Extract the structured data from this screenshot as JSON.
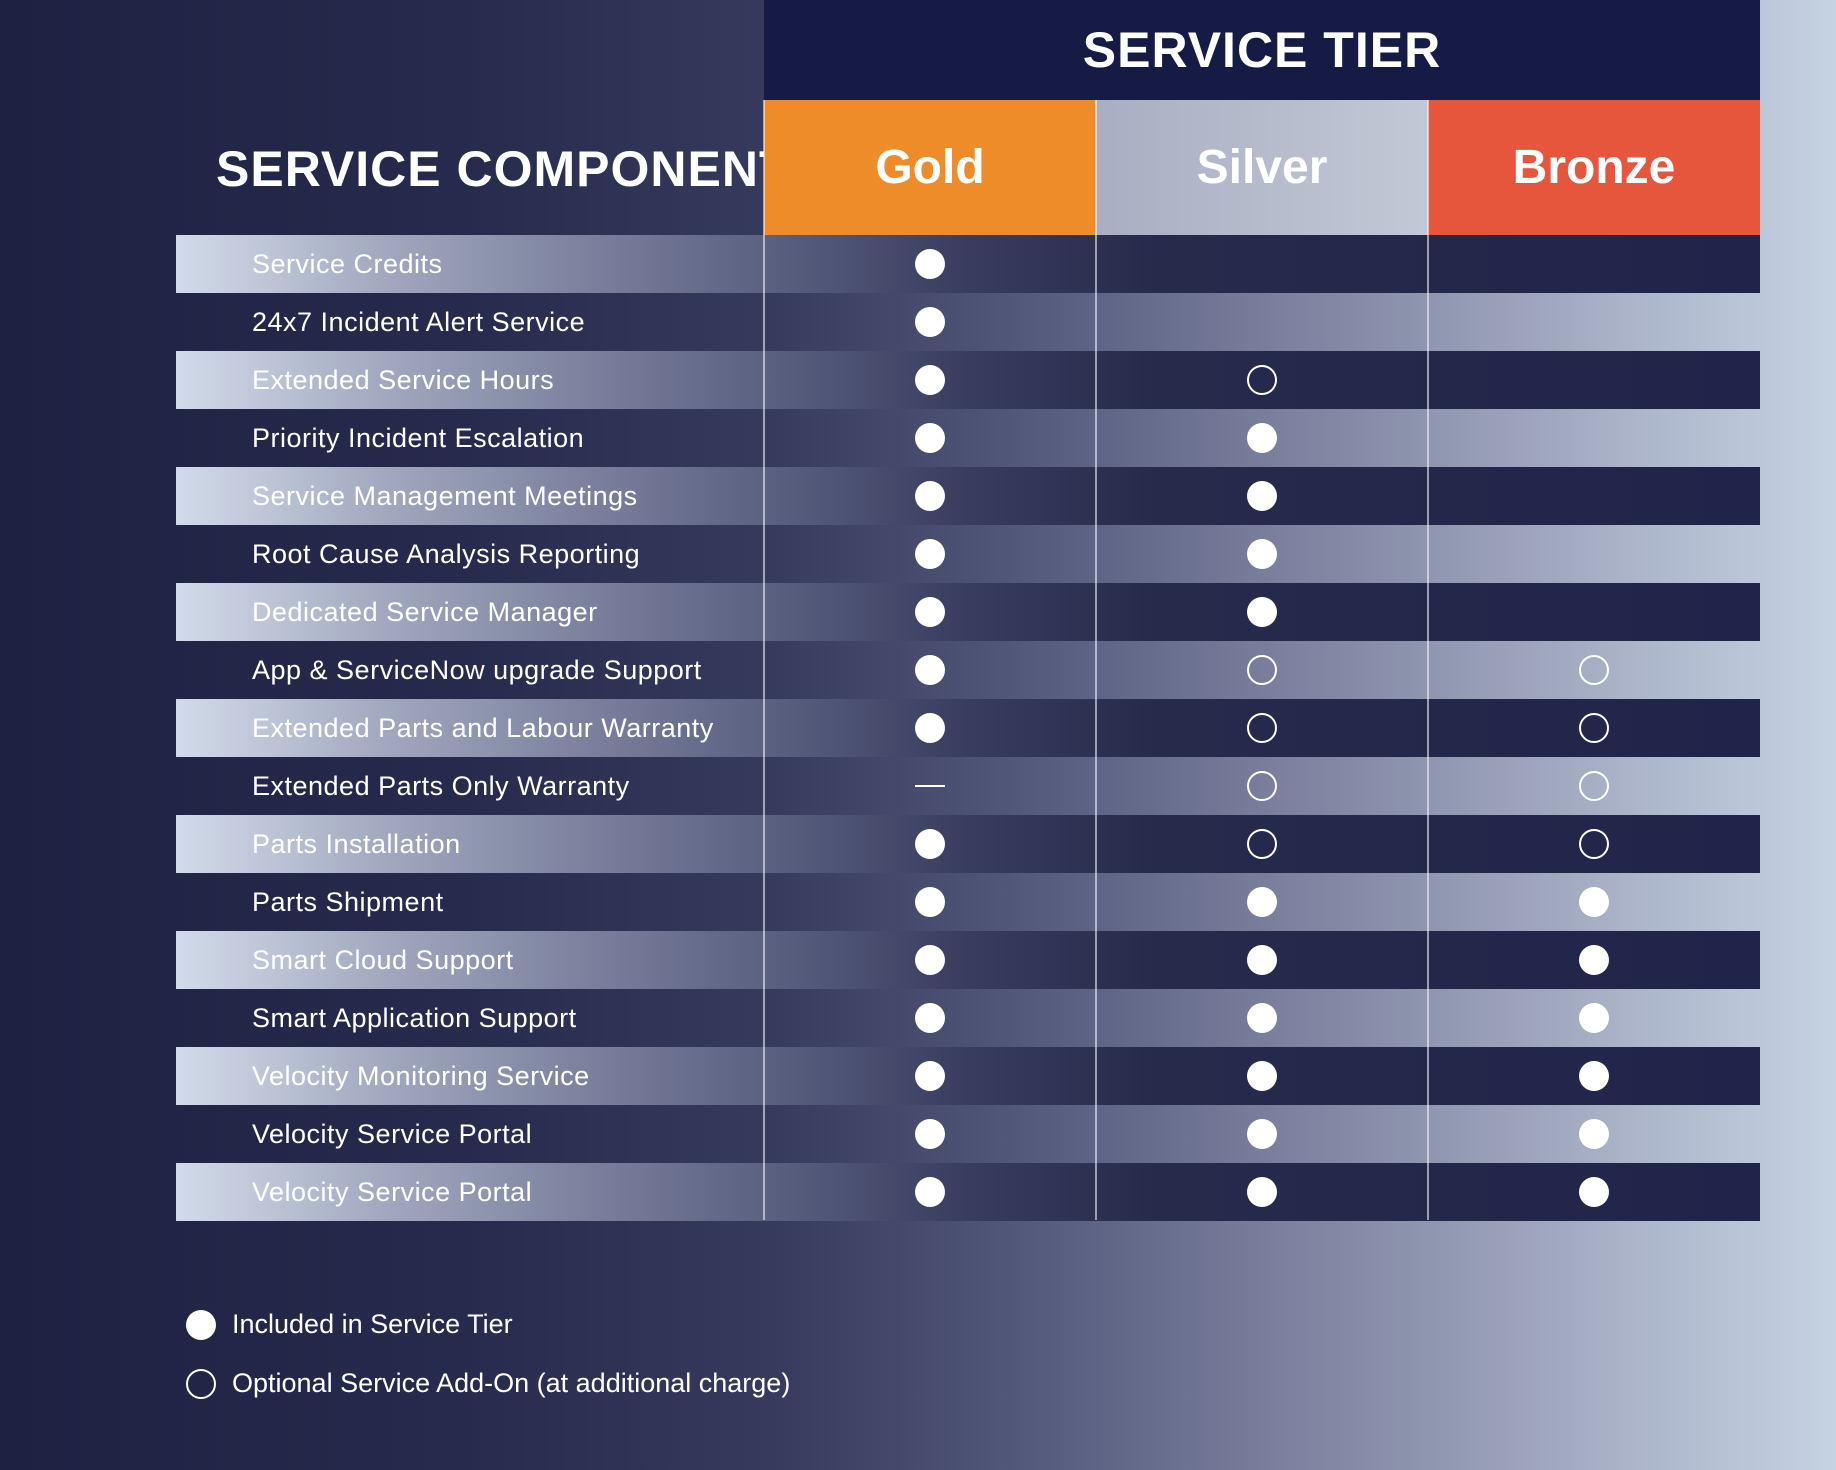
{
  "header": {
    "tier_title": "SERVICE TIER",
    "component_title": "SERVICE COMPONENT",
    "tiers": [
      "Gold",
      "Silver",
      "Bronze"
    ]
  },
  "colors": {
    "gold": "#ef8c2a",
    "silver": "#b8bdcc",
    "bronze": "#e5563c",
    "header_bg": "#161b45"
  },
  "rows": [
    {
      "label": "Service Credits",
      "shaded": true,
      "values": [
        "included",
        "none",
        "none"
      ]
    },
    {
      "label": "24x7 Incident Alert Service",
      "shaded": false,
      "values": [
        "included",
        "none",
        "none"
      ]
    },
    {
      "label": "Extended Service Hours",
      "shaded": true,
      "values": [
        "included",
        "optional",
        "none"
      ]
    },
    {
      "label": "Priority Incident Escalation",
      "shaded": false,
      "values": [
        "included",
        "included",
        "none"
      ]
    },
    {
      "label": "Service Management Meetings",
      "shaded": true,
      "values": [
        "included",
        "included",
        "none"
      ]
    },
    {
      "label": "Root Cause Analysis Reporting",
      "shaded": false,
      "values": [
        "included",
        "included",
        "none"
      ]
    },
    {
      "label": "Dedicated Service Manager",
      "shaded": true,
      "values": [
        "included",
        "included",
        "none"
      ]
    },
    {
      "label": "App & ServiceNow upgrade Support",
      "shaded": false,
      "values": [
        "included",
        "optional",
        "optional"
      ]
    },
    {
      "label": "Extended Parts and Labour Warranty",
      "shaded": true,
      "values": [
        "included",
        "optional",
        "optional"
      ]
    },
    {
      "label": "Extended Parts Only Warranty",
      "shaded": false,
      "values": [
        "dash",
        "optional",
        "optional"
      ]
    },
    {
      "label": "Parts Installation",
      "shaded": true,
      "values": [
        "included",
        "optional",
        "optional"
      ]
    },
    {
      "label": "Parts Shipment",
      "shaded": false,
      "values": [
        "included",
        "included",
        "included"
      ]
    },
    {
      "label": "Smart Cloud Support",
      "shaded": true,
      "values": [
        "included",
        "included",
        "included"
      ]
    },
    {
      "label": "Smart Application Support",
      "shaded": false,
      "values": [
        "included",
        "included",
        "included"
      ]
    },
    {
      "label": "Velocity Monitoring Service",
      "shaded": true,
      "values": [
        "included",
        "included",
        "included"
      ]
    },
    {
      "label": "Velocity Service Portal",
      "shaded": false,
      "values": [
        "included",
        "included",
        "included"
      ]
    },
    {
      "label": "Velocity Service Portal",
      "shaded": true,
      "values": [
        "included",
        "included",
        "included"
      ]
    }
  ],
  "legend": {
    "included": "Included in Service Tier",
    "optional": "Optional Service Add-On (at additional charge)"
  }
}
